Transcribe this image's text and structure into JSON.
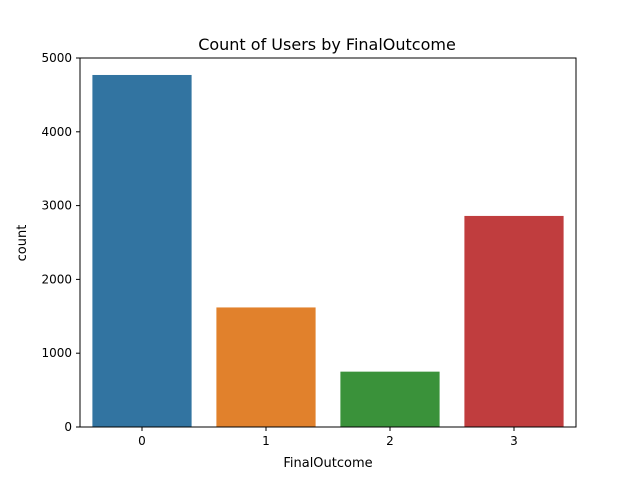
{
  "chart_data": {
    "type": "bar",
    "title": "Count of Users by FinalOutcome",
    "xlabel": "FinalOutcome",
    "ylabel": "count",
    "categories": [
      "0",
      "1",
      "2",
      "3"
    ],
    "values": [
      4770,
      1620,
      750,
      2860
    ],
    "ylim": [
      0,
      5000
    ],
    "yticks": [
      0,
      1000,
      2000,
      3000,
      4000,
      5000
    ],
    "grid": false,
    "legend": "none",
    "colors": [
      "#3274a1",
      "#e1812c",
      "#3a923a",
      "#c03d3e"
    ]
  }
}
